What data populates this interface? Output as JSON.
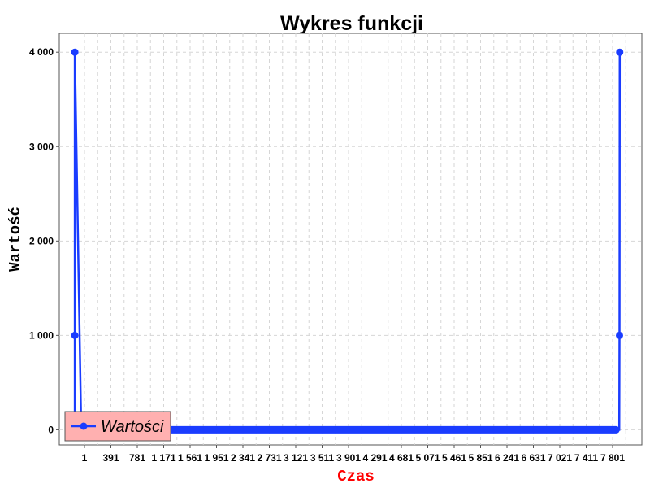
{
  "chart_data": {
    "type": "line",
    "title": "Wykres funkcji",
    "xlabel": "Czas",
    "ylabel": "Wartość",
    "xlim": [
      -70,
      2590
    ],
    "ylim": [
      -160,
      4200
    ],
    "grid": true,
    "legend_position": "bottom-left",
    "x_ticks": [
      1,
      391,
      781,
      1171,
      1561,
      1951,
      2341,
      2731,
      3121,
      3511,
      3901,
      4291,
      4681,
      5071,
      5461,
      5851,
      6241,
      6631,
      7021,
      7411,
      7801
    ],
    "x_tick_labels": [
      "1",
      "391",
      "781",
      "1 171",
      "1 561",
      "1 951",
      "2 341",
      "2 731",
      "3 121",
      "3 511",
      "3 901",
      "4 291",
      "4 681",
      "5 071",
      "5 461",
      "5 851",
      "6 241",
      "6 631",
      "7 021",
      "7 411",
      "7 801"
    ],
    "y_ticks": [
      0,
      1000,
      2000,
      3000,
      4000
    ],
    "y_tick_labels": [
      "0",
      "1 000",
      "2 000",
      "3 000",
      "4 000"
    ],
    "series": [
      {
        "name": "Wartości",
        "color": "#1a3cff",
        "x": [
          1,
          1,
          1,
          30,
          200,
          500,
          800,
          1200,
          1600,
          2000,
          2300,
          2487,
          2488,
          2489
        ],
        "y": [
          0,
          1000,
          4000,
          0,
          0,
          0,
          0,
          0,
          0,
          0,
          0,
          0,
          1000,
          4000
        ]
      }
    ]
  },
  "colors": {
    "line": "#1a3cff",
    "xlabel": "#ff0000",
    "legend_bg": "#ffb0b0",
    "grid": "#d6d6d6"
  }
}
